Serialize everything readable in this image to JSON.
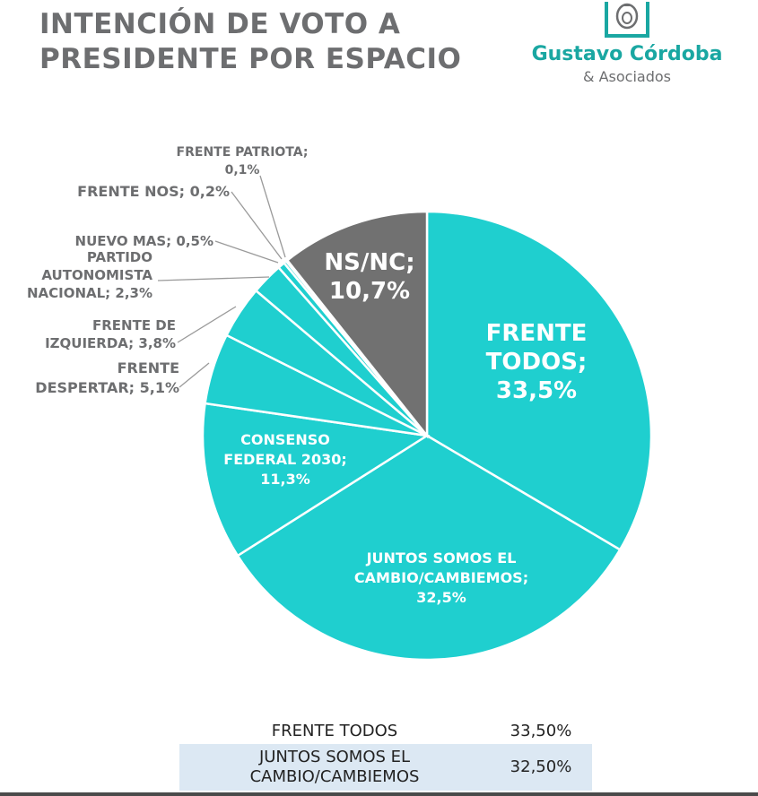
{
  "title_lines": [
    "INTENCIÓN DE VOTO A",
    "PRESIDENTE POR ESPACIO"
  ],
  "logo": {
    "name": "Gustavo Córdoba",
    "sub": "& Asociados",
    "color": "#1aa7a2"
  },
  "chart_data": {
    "type": "pie",
    "title": "INTENCIÓN DE VOTO A PRESIDENTE POR ESPACIO",
    "slices": [
      {
        "label": "FRENTE TODOS",
        "value": 33.5,
        "display": "33,5%",
        "color": "#1fcfcf"
      },
      {
        "label": "JUNTOS SOMOS EL CAMBIO/CAMBIEMOS",
        "value": 32.5,
        "display": "32,5%",
        "color": "#1fcfcf"
      },
      {
        "label": "CONSENSO FEDERAL 2030",
        "value": 11.3,
        "display": "11,3%",
        "color": "#1fcfcf"
      },
      {
        "label": "FRENTE DESPERTAR",
        "value": 5.1,
        "display": "5,1%",
        "color": "#1fcfcf"
      },
      {
        "label": "FRENTE DE IZQUIERDA",
        "value": 3.8,
        "display": "3,8%",
        "color": "#1fcfcf"
      },
      {
        "label": "PARTIDO AUTONOMISTA NACIONAL",
        "value": 2.3,
        "display": "2,3%",
        "color": "#1fcfcf"
      },
      {
        "label": "NUEVO MAS",
        "value": 0.5,
        "display": "0,5%",
        "color": "#1fcfcf"
      },
      {
        "label": "FRENTE NOS",
        "value": 0.2,
        "display": "0,2%",
        "color": "#1fcfcf"
      },
      {
        "label": "FRENTE PATRIOTA",
        "value": 0.1,
        "display": "0,1%",
        "color": "#1fcfcf"
      },
      {
        "label": "NS/NC",
        "value": 10.7,
        "display": "10,7%",
        "color": "#717171"
      }
    ],
    "slice_labels": [
      {
        "lines": [
          "FRENTE",
          "TODOS;",
          "33,5%"
        ]
      },
      {
        "lines": [
          "JUNTOS SOMOS EL",
          "CAMBIO/CAMBIEMOS;",
          "32,5%"
        ]
      },
      {
        "lines": [
          "CONSENSO",
          "FEDERAL 2030;",
          "11,3%"
        ]
      },
      {
        "lines": [
          "FRENTE",
          "DESPERTAR; 5,1%"
        ]
      },
      {
        "lines": [
          "FRENTE DE",
          "IZQUIERDA; 3,8%"
        ]
      },
      {
        "lines": [
          "PARTIDO",
          "AUTONOMISTA",
          "NACIONAL; 2,3%"
        ]
      },
      {
        "lines": [
          "NUEVO MAS; 0,5%"
        ]
      },
      {
        "lines": [
          "FRENTE NOS; 0,2%"
        ]
      },
      {
        "lines": [
          "FRENTE PATRIOTA;",
          "0,1%"
        ]
      },
      {
        "lines": [
          "NS/NC;",
          "10,7%"
        ]
      }
    ],
    "colors": {
      "main": "#1fcfcf",
      "nsnc": "#717171",
      "outside_label": "#6d6e70",
      "leader": "#9a9a9a"
    }
  },
  "table": {
    "rows": [
      {
        "name": "FRENTE TODOS",
        "value": "33,50%"
      },
      {
        "name_lines": [
          "JUNTOS SOMOS EL",
          "CAMBIO/CAMBIEMOS"
        ],
        "value": "32,50%"
      }
    ]
  }
}
